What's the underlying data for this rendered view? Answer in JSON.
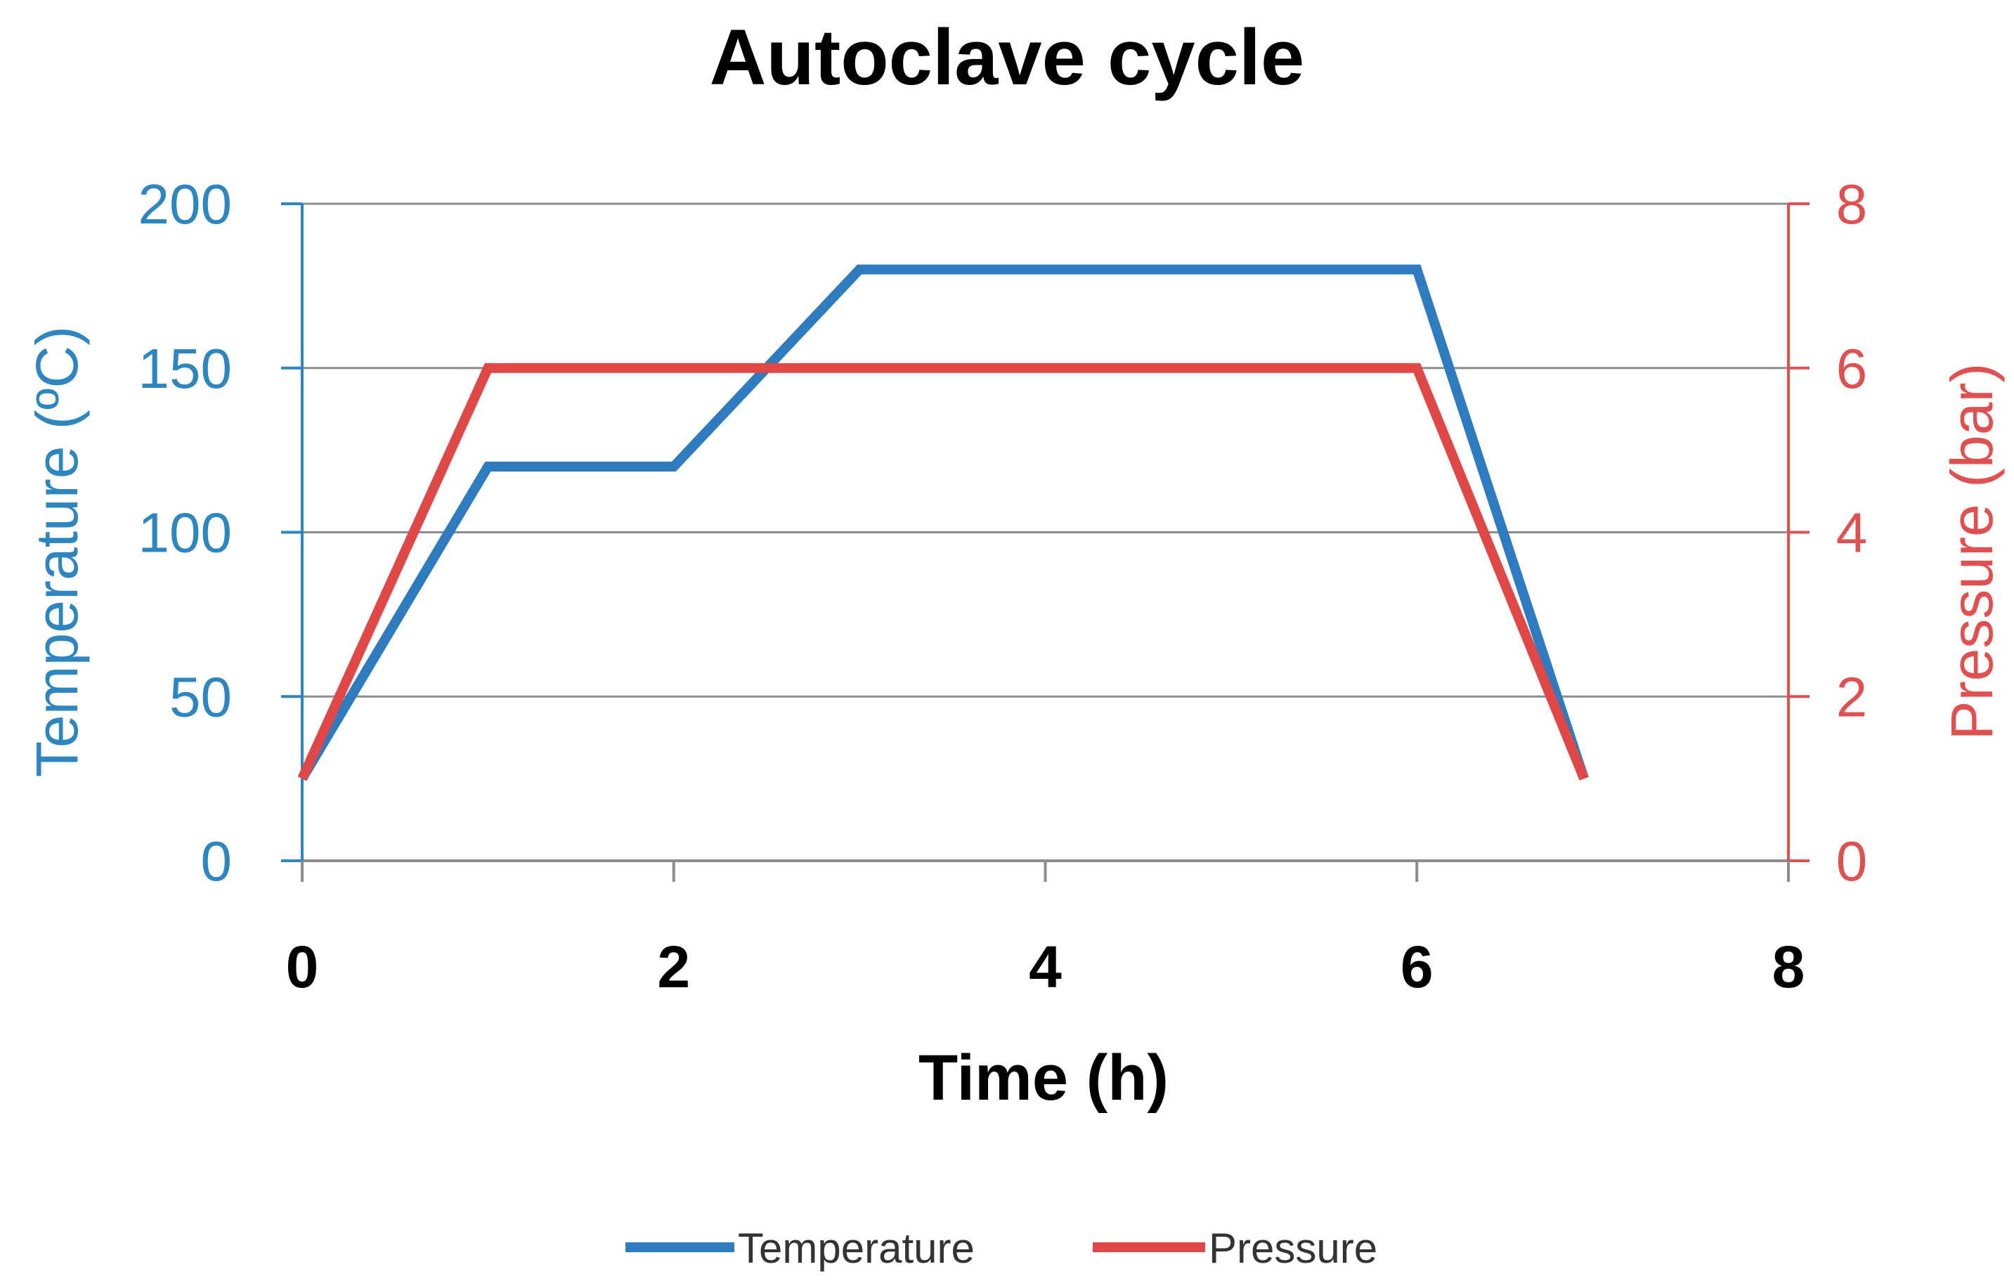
{
  "chart_data": {
    "type": "line",
    "title": "Autoclave cycle",
    "xlabel": "Time (h)",
    "ylabel": "Temperature (ºC)",
    "y2label": "Pressure (bar)",
    "xlim": [
      0,
      8
    ],
    "ylim": [
      0,
      200
    ],
    "y2lim": [
      0,
      8
    ],
    "xticks": [
      "0",
      "2",
      "4",
      "6",
      "8"
    ],
    "yticks": [
      "0",
      "50",
      "100",
      "150",
      "200"
    ],
    "y2ticks": [
      "0",
      "2",
      "4",
      "6",
      "8"
    ],
    "grid": true,
    "legend_position": "bottom",
    "series": [
      {
        "name": "Temperature",
        "axis": "left",
        "color": "#2E7BBF",
        "x": [
          0,
          1,
          2,
          3,
          6,
          6.9
        ],
        "y": [
          25,
          120,
          120,
          180,
          180,
          25
        ]
      },
      {
        "name": "Pressure",
        "axis": "right",
        "color": "#E04848",
        "x": [
          0,
          1,
          6,
          6.9
        ],
        "y": [
          1,
          6,
          6,
          1
        ]
      }
    ],
    "colors": {
      "left_axis": "#2E86C1",
      "right_axis": "#E05050",
      "grid": "#8C8C8C",
      "x_axis": "#8C8C8C"
    }
  }
}
